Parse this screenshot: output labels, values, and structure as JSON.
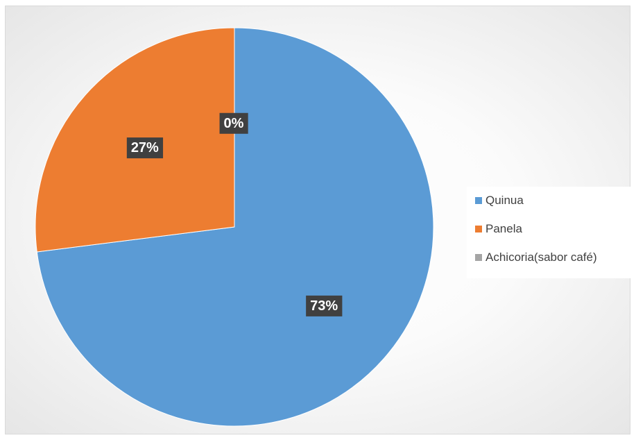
{
  "chart_data": {
    "type": "pie",
    "categories": [
      "Quinua",
      "Panela",
      "Achicoria(sabor café)"
    ],
    "values": [
      73,
      27,
      0
    ],
    "data_labels": [
      "73%",
      "27%",
      "0%"
    ],
    "colors": [
      "#5b9bd5",
      "#ed7d31",
      "#a5a5a5"
    ],
    "legend_position": "right"
  }
}
